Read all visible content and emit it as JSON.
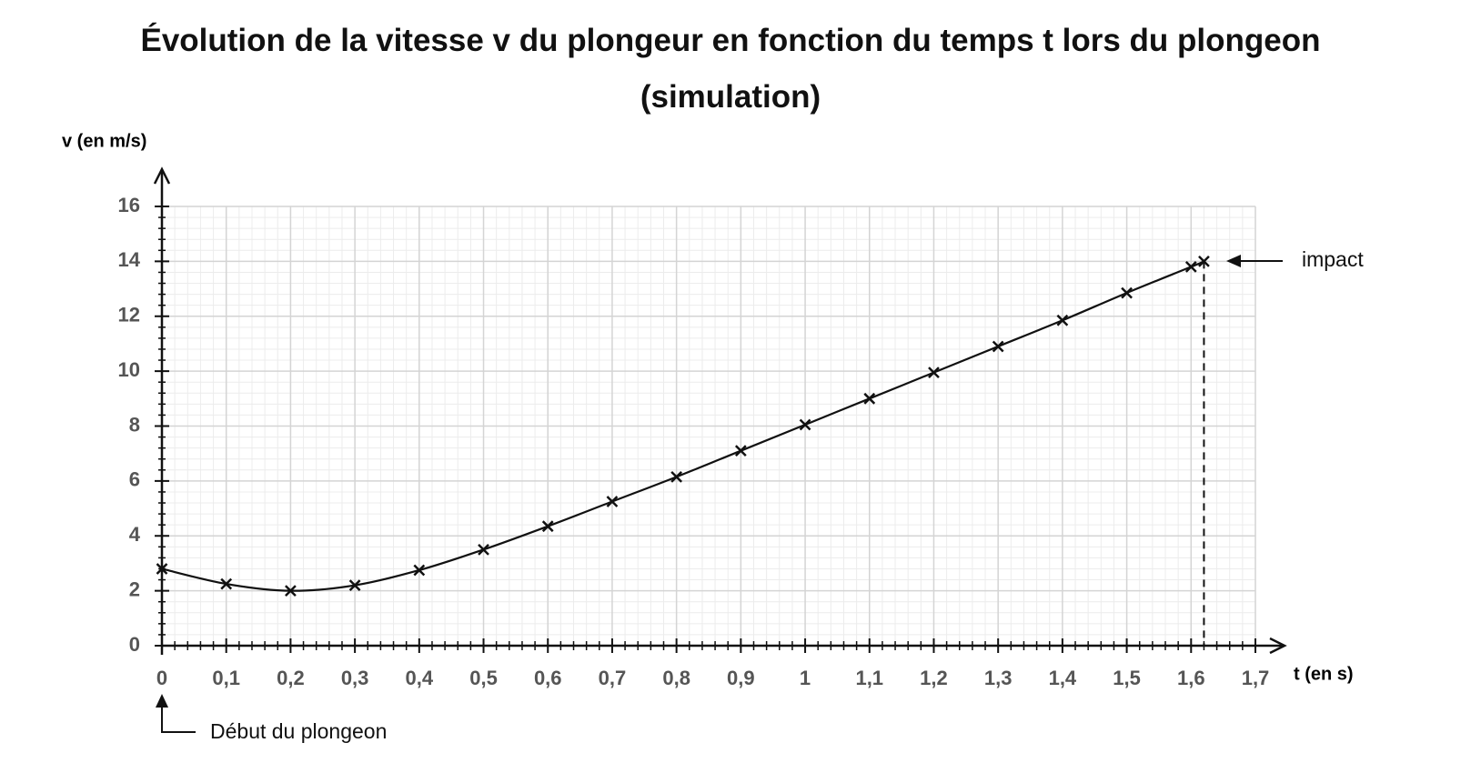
{
  "chart_data": {
    "type": "line",
    "title": "Évolution de la vitesse v du plongeur en fonction du temps t lors du plongeon (simulation)",
    "y_label": "v (en m/s)",
    "x_label": "t (en s)",
    "annotations": [
      "impact",
      "Début du plongeon"
    ],
    "series": [
      {
        "name": "v",
        "color": "#111111",
        "x": [
          0,
          0.1,
          0.2,
          0.3,
          0.4,
          0.5,
          0.6,
          0.7,
          0.8,
          0.9,
          1.0,
          1.1,
          1.2,
          1.3,
          1.4,
          1.5,
          1.6,
          1.62
        ],
        "values": [
          2.8,
          2.25,
          2.0,
          2.2,
          2.75,
          3.5,
          4.35,
          5.25,
          6.15,
          7.1,
          8.05,
          9.0,
          9.95,
          10.9,
          11.85,
          12.85,
          13.8,
          14.0
        ]
      }
    ],
    "xlim": [
      0,
      1.7
    ],
    "ylim": [
      0,
      16
    ],
    "xticks": [
      0,
      {
        "value": 0.1,
        "label": "0,1"
      },
      {
        "value": 0.2,
        "label": "0,2"
      },
      {
        "value": 0.3,
        "label": "0,3"
      },
      {
        "value": 0.4,
        "label": "0,4"
      },
      {
        "value": 0.5,
        "label": "0,5"
      },
      {
        "value": 0.6,
        "label": "0,6"
      },
      {
        "value": 0.7,
        "label": "0,7"
      },
      {
        "value": 0.8,
        "label": "0,8"
      },
      {
        "value": 0.9,
        "label": "0,9"
      },
      1,
      {
        "value": 1.1,
        "label": "1,1"
      },
      {
        "value": 1.2,
        "label": "1,2"
      },
      {
        "value": 1.3,
        "label": "1,3"
      },
      {
        "value": 1.4,
        "label": "1,4"
      },
      {
        "value": 1.5,
        "label": "1,5"
      },
      {
        "value": 1.6,
        "label": "1,6"
      },
      {
        "value": 1.7,
        "label": "1,7"
      }
    ],
    "yticks": [
      0,
      2,
      4,
      6,
      8,
      10,
      12,
      14,
      16
    ],
    "grid": true,
    "minor_grid_divisions": 5
  }
}
